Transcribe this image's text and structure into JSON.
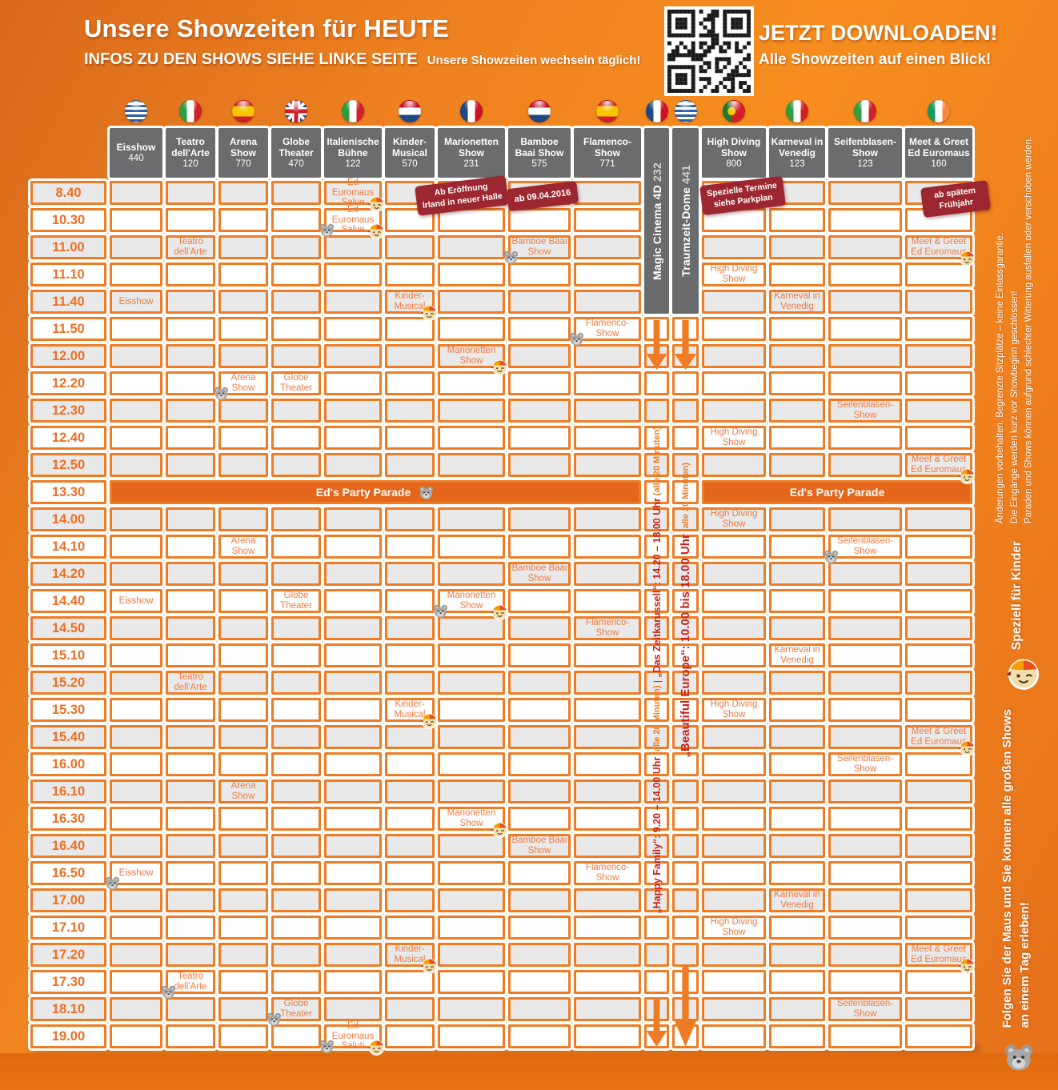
{
  "header": {
    "title": "Unsere Showzeiten für HEUTE",
    "subtitle_bold": "INFOS ZU DEN SHOWS SIEHE LINKE SEITE",
    "subtitle_small": "Unsere Showzeiten wechseln täglich!",
    "download_title": "JETZT DOWNLOADEN!",
    "download_subtitle": "Alle Showzeiten auf einen Blick!",
    "qr_icon": "qr-code"
  },
  "accent_colors": {
    "grid_orange": "#ee7c25",
    "cell_text_orange": "#ef7b45",
    "badge_red": "#9c2730",
    "venue_gray": "#6a6c6e",
    "parade_orange": "#e3661b",
    "schedule_red": "#c8231b"
  },
  "columns": [
    {
      "name": "Eisshow",
      "number": "440",
      "flag": "greece"
    },
    {
      "name": "Teatro dell'Arte",
      "number": "120",
      "flag": "italy"
    },
    {
      "name": "Arena Show",
      "number": "770",
      "flag": "spain"
    },
    {
      "name": "Globe Theater",
      "number": "470",
      "flag": "uk"
    },
    {
      "name": "Italienische Bühne",
      "number": "122",
      "flag": "italy"
    },
    {
      "name": "Kinder-Musical",
      "number": "570",
      "flag": "netherlands"
    },
    {
      "name": "Marionetten Show",
      "number": "231",
      "flag": "france"
    },
    {
      "name": "Bamboe Baai Show",
      "number": "575",
      "flag": "netherlands"
    },
    {
      "name": "Flamenco-Show",
      "number": "771",
      "flag": "spain"
    },
    {
      "name": "Magic Cinema 4D",
      "number": "232",
      "flag": "france",
      "vertical": true
    },
    {
      "name": "Traumzeit-Dome",
      "number": "441",
      "flag": "greece",
      "vertical": true
    },
    {
      "name": "High Diving Show",
      "number": "800",
      "flag": "portugal"
    },
    {
      "name": "Karneval in Venedig",
      "number": "123",
      "flag": "italy"
    },
    {
      "name": "Seifenblasen-Show",
      "number": "123",
      "flag": "italy"
    },
    {
      "name": "Meet & Greet Ed Euromaus",
      "number": "160",
      "flag": "ireland"
    }
  ],
  "badges": {
    "irland": "Ab Eröffnung\nIrland in neuer Halle",
    "date": "ab 09.04.2016",
    "termine": "Spezielle Termine\nsiehe Parkplan",
    "fruehjahr": "ab spätem\nFrühjahr"
  },
  "parade_label": "Ed's Party Parade",
  "magic_parts": [
    {
      "text": "„Happy Family“: 9.20 – 14.00 Uhr",
      "style": "seg-red"
    },
    {
      "text": " (alle 20 Minuten)",
      "style": "seg-org"
    },
    {
      "text": " | ",
      "style": "seg-sep"
    },
    {
      "text": "„Das Zeitkarussell“: 14.20 – 18.00 Uhr",
      "style": "seg-red"
    },
    {
      "text": " (alle 20 Minuten)",
      "style": "seg-org"
    }
  ],
  "traumzeit_parts": [
    {
      "text": "„Beautiful Europe“: 10.00 bis 18.00 Uhr",
      "style": "seg-red-lg"
    },
    {
      "text": " (alle 20 Minuten)",
      "style": "seg-org"
    }
  ],
  "legal": {
    "lines": [
      "Änderungen vorbehalten. Begrenzte Sitzplätze – keine Einlassgarantie.",
      "Die Eingänge werden kurz vor Showbeginn geschlossen!",
      "Paraden und Shows können aufgrund schlechter Witterung ausfallen oder verschoben werden."
    ]
  },
  "kids_note": "Speziell für Kinder",
  "follow_note": "Folgen Sie der Maus und Sie können alle großen Shows\nan einem Tag erleben!",
  "rows": [
    {
      "time": "8.40",
      "cells": [
        {
          "col": 5,
          "text": "Ed Euromaus Salve",
          "icons": [
            "ed"
          ]
        }
      ]
    },
    {
      "time": "10.30",
      "cells": [
        {
          "col": 5,
          "text": "Ed Euromaus Salve",
          "icons": [
            "mouse",
            "ed"
          ]
        }
      ]
    },
    {
      "time": "11.00",
      "cells": [
        {
          "col": 2,
          "text": "Teatro dell'Arte"
        },
        {
          "col": 8,
          "text": "Bamboe Baai Show",
          "icons": [
            "mouse"
          ]
        },
        {
          "col": 15,
          "text": "Meet & Greet Ed Euromaus",
          "icons": [
            "ed"
          ]
        }
      ]
    },
    {
      "time": "11.10",
      "cells": [
        {
          "col": 12,
          "text": "High Diving Show"
        }
      ]
    },
    {
      "time": "11.40",
      "cells": [
        {
          "col": 1,
          "text": "Eisshow"
        },
        {
          "col": 6,
          "text": "Kinder-Musical",
          "icons": [
            "ed"
          ]
        },
        {
          "col": 13,
          "text": "Karneval in Venedig"
        }
      ]
    },
    {
      "time": "11.50",
      "cells": [
        {
          "col": 9,
          "text": "Flamenco-Show",
          "icons": [
            "mouse"
          ]
        }
      ]
    },
    {
      "time": "12.00",
      "cells": [
        {
          "col": 7,
          "text": "Marionetten Show",
          "icons": [
            "ed"
          ]
        }
      ]
    },
    {
      "time": "12.20",
      "cells": [
        {
          "col": 3,
          "text": "Arena Show",
          "icons": [
            "mouse"
          ]
        },
        {
          "col": 4,
          "text": "Globe Theater"
        }
      ]
    },
    {
      "time": "12.30",
      "cells": [
        {
          "col": 14,
          "text": "Seifenblasen-Show"
        }
      ]
    },
    {
      "time": "12.40",
      "cells": [
        {
          "col": 12,
          "text": "High Diving Show"
        }
      ]
    },
    {
      "time": "12.50",
      "cells": [
        {
          "col": 15,
          "text": "Meet & Greet Ed Euromaus",
          "icons": [
            "ed"
          ]
        }
      ]
    },
    {
      "time": "13.30",
      "parade": true
    },
    {
      "time": "14.00",
      "cells": [
        {
          "col": 12,
          "text": "High Diving Show"
        }
      ]
    },
    {
      "time": "14.10",
      "cells": [
        {
          "col": 3,
          "text": "Arena Show"
        },
        {
          "col": 14,
          "text": "Seifenblasen-Show",
          "icons": [
            "mouse"
          ]
        }
      ]
    },
    {
      "time": "14.20",
      "cells": [
        {
          "col": 8,
          "text": "Bamboe Baai Show"
        }
      ]
    },
    {
      "time": "14.40",
      "cells": [
        {
          "col": 1,
          "text": "Eisshow"
        },
        {
          "col": 4,
          "text": "Globe Theater"
        },
        {
          "col": 7,
          "text": "Marionetten Show",
          "icons": [
            "mouse",
            "ed"
          ]
        }
      ]
    },
    {
      "time": "14.50",
      "cells": [
        {
          "col": 9,
          "text": "Flamenco-Show"
        }
      ]
    },
    {
      "time": "15.10",
      "cells": [
        {
          "col": 13,
          "text": "Karneval in Venedig"
        }
      ]
    },
    {
      "time": "15.20",
      "cells": [
        {
          "col": 2,
          "text": "Teatro dell'Arte"
        }
      ]
    },
    {
      "time": "15.30",
      "cells": [
        {
          "col": 6,
          "text": "Kinder-Musical",
          "icons": [
            "ed"
          ]
        },
        {
          "col": 12,
          "text": "High Diving Show"
        }
      ]
    },
    {
      "time": "15.40",
      "cells": [
        {
          "col": 15,
          "text": "Meet & Greet Ed Euromaus",
          "icons": [
            "ed"
          ]
        }
      ]
    },
    {
      "time": "16.00",
      "cells": [
        {
          "col": 14,
          "text": "Seifenblasen-Show"
        }
      ]
    },
    {
      "time": "16.10",
      "cells": [
        {
          "col": 3,
          "text": "Arena Show"
        }
      ]
    },
    {
      "time": "16.30",
      "cells": [
        {
          "col": 7,
          "text": "Marionetten Show",
          "icons": [
            "ed"
          ]
        }
      ]
    },
    {
      "time": "16.40",
      "cells": [
        {
          "col": 8,
          "text": "Bamboe Baai Show"
        }
      ]
    },
    {
      "time": "16.50",
      "cells": [
        {
          "col": 1,
          "text": "Eisshow",
          "icons": [
            "mouse"
          ]
        },
        {
          "col": 9,
          "text": "Flamenco-Show"
        }
      ]
    },
    {
      "time": "17.00",
      "cells": [
        {
          "col": 13,
          "text": "Karneval in Venedig"
        }
      ]
    },
    {
      "time": "17.10",
      "cells": [
        {
          "col": 12,
          "text": "High Diving Show"
        }
      ]
    },
    {
      "time": "17.20",
      "cells": [
        {
          "col": 6,
          "text": "Kinder-Musical",
          "icons": [
            "ed"
          ]
        },
        {
          "col": 15,
          "text": "Meet & Greet Ed Euromaus",
          "icons": [
            "ed"
          ]
        }
      ]
    },
    {
      "time": "17.30",
      "cells": [
        {
          "col": 2,
          "text": "Teatro dell'Arte",
          "icons": [
            "mouse"
          ]
        }
      ]
    },
    {
      "time": "18.10",
      "cells": [
        {
          "col": 4,
          "text": "Globe Theater",
          "icons": [
            "mouse"
          ]
        },
        {
          "col": 14,
          "text": "Seifenblasen-Show"
        }
      ]
    },
    {
      "time": "19.00",
      "cells": [
        {
          "col": 5,
          "text": "Ed Euromaus Saluti",
          "icons": [
            "mouse",
            "ed"
          ]
        }
      ]
    }
  ]
}
